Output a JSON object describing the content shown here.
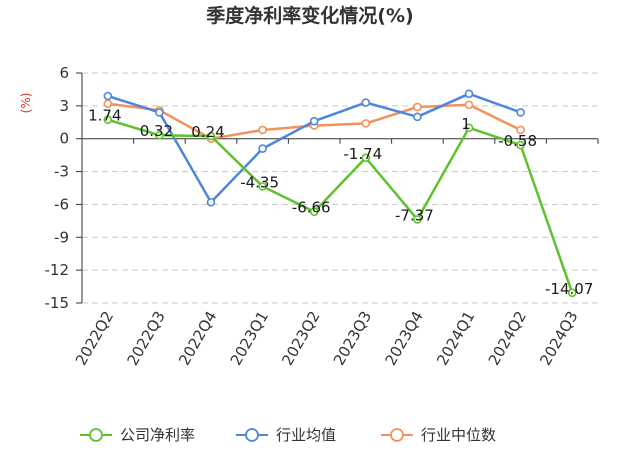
{
  "chart_data": {
    "type": "line",
    "title": "季度净利率变化情况(%)",
    "ylabel": "(%)",
    "categories": [
      "2022Q2",
      "2022Q3",
      "2022Q4",
      "2023Q1",
      "2023Q2",
      "2023Q3",
      "2023Q4",
      "2024Q1",
      "2024Q2",
      "2024Q3"
    ],
    "ylim": [
      -15,
      6
    ],
    "yticks": [
      6,
      3,
      0,
      -3,
      -6,
      -9,
      -12,
      -15
    ],
    "grid": true,
    "legend_position": "bottom",
    "series": [
      {
        "name": "公司净利率",
        "color": "#5ec22e",
        "values": [
          1.74,
          0.32,
          0.24,
          -4.35,
          -6.66,
          -1.74,
          -7.37,
          1,
          -0.58,
          -14.07
        ],
        "labels": [
          "1.74",
          "0.32",
          "0.24",
          "-4.35",
          "-6.66",
          "-1.74",
          "-7.37",
          "1",
          "-0.58",
          "-14.07"
        ]
      },
      {
        "name": "行业均值",
        "color": "#4f86dc",
        "values": [
          3.9,
          2.4,
          -5.8,
          -0.9,
          1.6,
          3.3,
          2.0,
          4.1,
          2.4,
          null
        ]
      },
      {
        "name": "行业中位数",
        "color": "#f4915a",
        "values": [
          3.2,
          2.6,
          0.0,
          0.8,
          1.2,
          1.4,
          2.9,
          3.1,
          0.8,
          null
        ]
      }
    ]
  }
}
